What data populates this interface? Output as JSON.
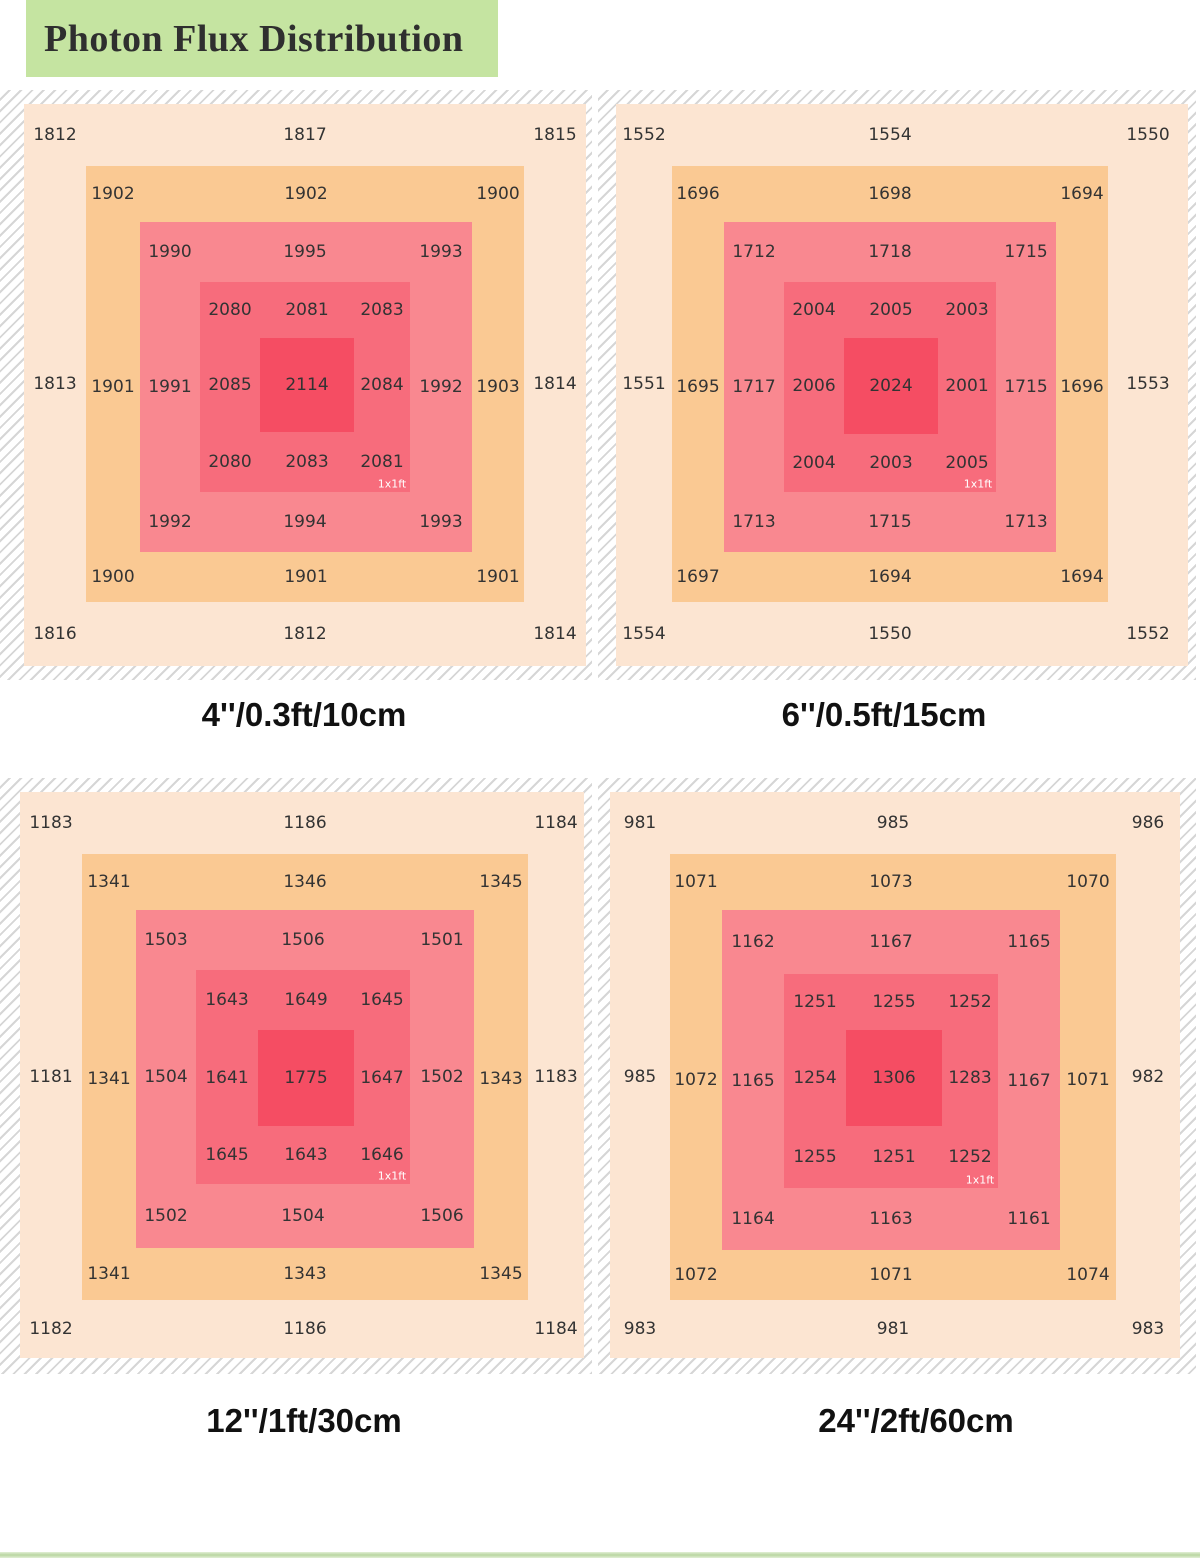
{
  "header": {
    "title": "Photon Flux Distribution"
  },
  "colors": {
    "outer": "#fce5d2",
    "ring2": "#fac993",
    "ring3": "#f98890",
    "ring4": "#f76c7c",
    "center": "#f54d63",
    "hatch": "#d6d6d6"
  },
  "panels": [
    {
      "caption": "4''/0.3ft/10cm",
      "area_label": "1x1ft",
      "rings": [
        {
          "top": [
            "1812",
            "1817",
            "1815"
          ],
          "middle": [
            "1813",
            "1814"
          ],
          "bottom": [
            "1816",
            "1812",
            "1814"
          ]
        },
        {
          "top": [
            "1902",
            "1902",
            "1900"
          ],
          "middle": [
            "1901",
            "1903"
          ],
          "bottom": [
            "1900",
            "1901",
            "1901"
          ]
        },
        {
          "top": [
            "1990",
            "1995",
            "1993"
          ],
          "middle": [
            "1991",
            "1992"
          ],
          "bottom": [
            "1992",
            "1994",
            "1993"
          ]
        },
        {
          "top": [
            "2080",
            "2081",
            "2083"
          ],
          "middle": [
            "2085",
            "2084"
          ],
          "bottom": [
            "2080",
            "2083",
            "2081"
          ]
        }
      ],
      "center": "2114"
    },
    {
      "caption": "6''/0.5ft/15cm",
      "area_label": "1x1ft",
      "rings": [
        {
          "top": [
            "1552",
            "1554",
            "1550"
          ],
          "middle": [
            "1551",
            "1553"
          ],
          "bottom": [
            "1554",
            "1550",
            "1552"
          ]
        },
        {
          "top": [
            "1696",
            "1698",
            "1694"
          ],
          "middle": [
            "1695",
            "1696"
          ],
          "bottom": [
            "1697",
            "1694",
            "1694"
          ]
        },
        {
          "top": [
            "1712",
            "1718",
            "1715"
          ],
          "middle": [
            "1717",
            "1715"
          ],
          "bottom": [
            "1713",
            "1715",
            "1713"
          ]
        },
        {
          "top": [
            "2004",
            "2005",
            "2003"
          ],
          "middle": [
            "2006",
            "2001"
          ],
          "bottom": [
            "2004",
            "2003",
            "2005"
          ]
        }
      ],
      "center": "2024"
    },
    {
      "caption": "12''/1ft/30cm",
      "area_label": "1x1ft",
      "rings": [
        {
          "top": [
            "1183",
            "1186",
            "1184"
          ],
          "middle": [
            "1181",
            "1183"
          ],
          "bottom": [
            "1182",
            "1186",
            "1184"
          ]
        },
        {
          "top": [
            "1341",
            "1346",
            "1345"
          ],
          "middle": [
            "1341",
            "1343"
          ],
          "bottom": [
            "1341",
            "1343",
            "1345"
          ]
        },
        {
          "top": [
            "1503",
            "1506",
            "1501"
          ],
          "middle": [
            "1504",
            "1502"
          ],
          "bottom": [
            "1502",
            "1504",
            "1506"
          ]
        },
        {
          "top": [
            "1643",
            "1649",
            "1645"
          ],
          "middle": [
            "1641",
            "1647"
          ],
          "bottom": [
            "1645",
            "1643",
            "1646"
          ]
        }
      ],
      "center": "1775"
    },
    {
      "caption": "24''/2ft/60cm",
      "area_label": "1x1ft",
      "rings": [
        {
          "top": [
            "981",
            "985",
            "986"
          ],
          "middle": [
            "985",
            "982"
          ],
          "bottom": [
            "983",
            "981",
            "983"
          ]
        },
        {
          "top": [
            "1071",
            "1073",
            "1070"
          ],
          "middle": [
            "1072",
            "1071"
          ],
          "bottom": [
            "1072",
            "1071",
            "1074"
          ]
        },
        {
          "top": [
            "1162",
            "1167",
            "1165"
          ],
          "middle": [
            "1165",
            "1167"
          ],
          "bottom": [
            "1164",
            "1163",
            "1161"
          ]
        },
        {
          "top": [
            "1251",
            "1255",
            "1252"
          ],
          "middle": [
            "1254",
            "1283"
          ],
          "bottom": [
            "1255",
            "1251",
            "1252"
          ]
        }
      ],
      "center": "1306"
    }
  ]
}
